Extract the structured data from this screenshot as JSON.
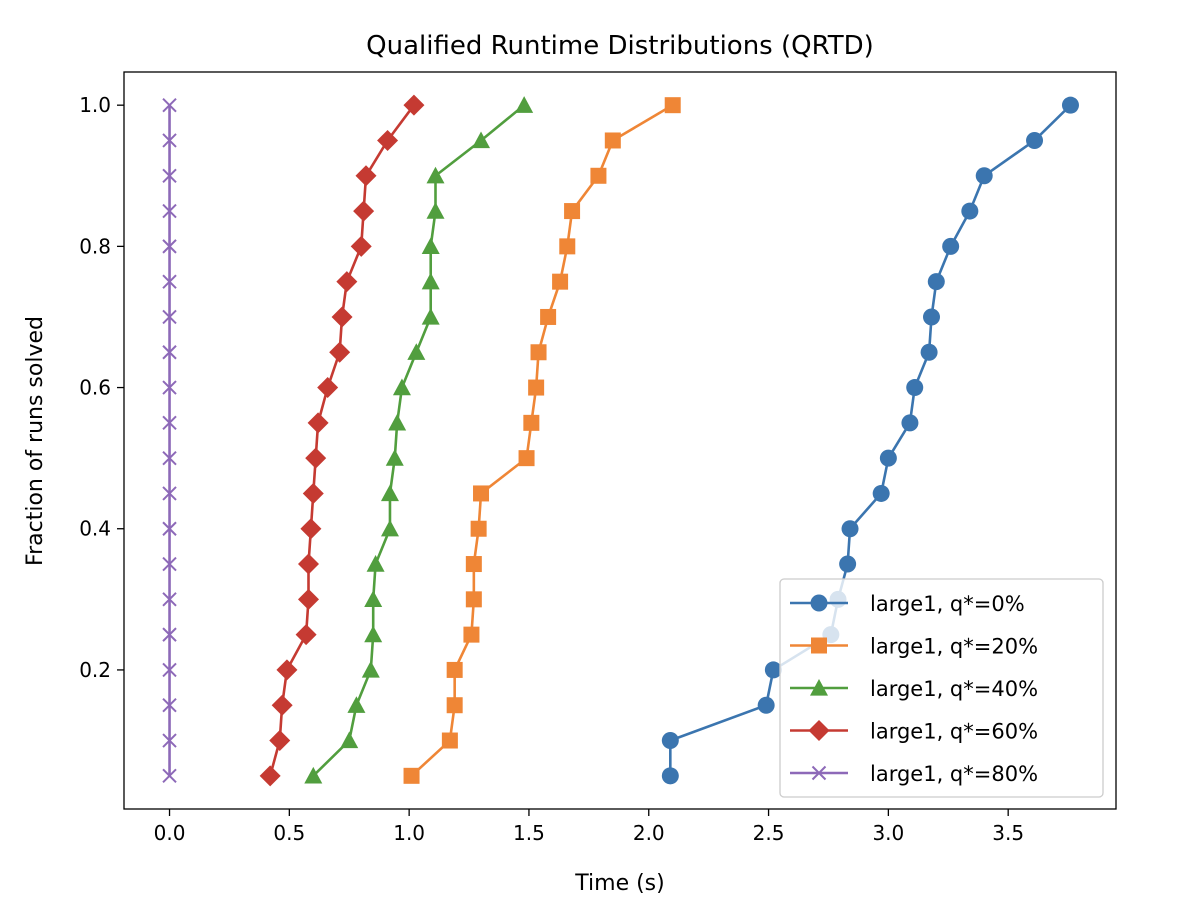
{
  "chart_data": {
    "type": "line",
    "title": "Qualified Runtime Distributions (QRTD)",
    "xlabel": "Time (s)",
    "ylabel": "Fraction of runs solved",
    "xlim": [
      -0.19,
      3.95
    ],
    "ylim": [
      0.003,
      1.047
    ],
    "xticks": [
      0.0,
      0.5,
      1.0,
      1.5,
      2.0,
      2.5,
      3.0,
      3.5
    ],
    "xtick_labels": [
      "0.0",
      "0.5",
      "1.0",
      "1.5",
      "2.0",
      "2.5",
      "3.0",
      "3.5"
    ],
    "yticks": [
      0.2,
      0.4,
      0.6,
      0.8,
      1.0
    ],
    "ytick_labels": [
      "0.2",
      "0.4",
      "0.6",
      "0.8",
      "1.0"
    ],
    "grid": false,
    "legend_position": "bottom-right",
    "series": [
      {
        "name": "large1, q*=0%",
        "color": "#3b75af",
        "marker": "circle",
        "x": [
          2.09,
          2.09,
          2.49,
          2.52,
          2.76,
          2.79,
          2.83,
          2.84,
          2.97,
          3.0,
          3.09,
          3.11,
          3.17,
          3.18,
          3.2,
          3.26,
          3.34,
          3.4,
          3.61,
          3.76
        ],
        "y": [
          0.05,
          0.1,
          0.15,
          0.2,
          0.25,
          0.3,
          0.35,
          0.4,
          0.45,
          0.5,
          0.55,
          0.6,
          0.65,
          0.7,
          0.75,
          0.8,
          0.85,
          0.9,
          0.95,
          1.0
        ]
      },
      {
        "name": "large1, q*=20%",
        "color": "#ef8636",
        "marker": "square",
        "x": [
          1.01,
          1.17,
          1.19,
          1.19,
          1.26,
          1.27,
          1.27,
          1.29,
          1.3,
          1.49,
          1.51,
          1.53,
          1.54,
          1.58,
          1.63,
          1.66,
          1.68,
          1.79,
          1.85,
          2.1
        ],
        "y": [
          0.05,
          0.1,
          0.15,
          0.2,
          0.25,
          0.3,
          0.35,
          0.4,
          0.45,
          0.5,
          0.55,
          0.6,
          0.65,
          0.7,
          0.75,
          0.8,
          0.85,
          0.9,
          0.95,
          1.0
        ]
      },
      {
        "name": "large1, q*=40%",
        "color": "#519e3e",
        "marker": "triangle",
        "x": [
          0.6,
          0.75,
          0.78,
          0.84,
          0.85,
          0.85,
          0.86,
          0.92,
          0.92,
          0.94,
          0.95,
          0.97,
          1.03,
          1.09,
          1.09,
          1.09,
          1.11,
          1.11,
          1.3,
          1.48
        ],
        "y": [
          0.05,
          0.1,
          0.15,
          0.2,
          0.25,
          0.3,
          0.35,
          0.4,
          0.45,
          0.5,
          0.55,
          0.6,
          0.65,
          0.7,
          0.75,
          0.8,
          0.85,
          0.9,
          0.95,
          1.0
        ]
      },
      {
        "name": "large1, q*=60%",
        "color": "#c53a32",
        "marker": "diamond",
        "x": [
          0.42,
          0.46,
          0.47,
          0.49,
          0.57,
          0.58,
          0.58,
          0.59,
          0.6,
          0.61,
          0.62,
          0.66,
          0.71,
          0.72,
          0.74,
          0.8,
          0.81,
          0.82,
          0.91,
          1.02
        ],
        "y": [
          0.05,
          0.1,
          0.15,
          0.2,
          0.25,
          0.3,
          0.35,
          0.4,
          0.45,
          0.5,
          0.55,
          0.6,
          0.65,
          0.7,
          0.75,
          0.8,
          0.85,
          0.9,
          0.95,
          1.0
        ]
      },
      {
        "name": "large1, q*=80%",
        "color": "#8d69b8",
        "marker": "x",
        "x": [
          0.0,
          0.0,
          0.0,
          0.0,
          0.0,
          0.0,
          0.0,
          0.0,
          0.0,
          0.0,
          0.0,
          0.0,
          0.0,
          0.0,
          0.0,
          0.0,
          0.0,
          0.0,
          0.0,
          0.0
        ],
        "y": [
          0.05,
          0.1,
          0.15,
          0.2,
          0.25,
          0.3,
          0.35,
          0.4,
          0.45,
          0.5,
          0.55,
          0.6,
          0.65,
          0.7,
          0.75,
          0.8,
          0.85,
          0.9,
          0.95,
          1.0
        ]
      }
    ]
  }
}
